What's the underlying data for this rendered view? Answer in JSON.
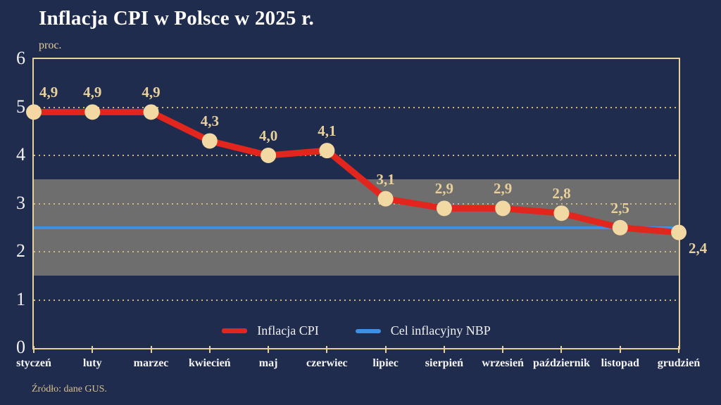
{
  "page": {
    "title": "Inflacja CPI w Polsce w 2025 r.",
    "unit_label": "proc.",
    "source": "Źródło: dane GUS."
  },
  "colors": {
    "background": "#1f2c4e",
    "plot_border": "#e8d09c",
    "gridline": "#cdb681",
    "band": "#6e6e6e",
    "cpi_line": "#e2261d",
    "marker_fill": "#f2d9a4",
    "target_line": "#3f8fe2",
    "data_label": "#e9d09a",
    "axis_text": "#f5f5f5"
  },
  "chart_data": {
    "type": "line",
    "title": "Inflacja CPI w Polsce w 2025 r.",
    "ylabel": "proc.",
    "xlabel": "",
    "ylim": [
      0,
      6
    ],
    "yticks": [
      0,
      1,
      2,
      3,
      4,
      5,
      6
    ],
    "grid": "dotted-horizontal",
    "legend_position": "bottom-inside",
    "categories": [
      "styczeń",
      "luty",
      "marzec",
      "kwiecień",
      "maj",
      "czerwiec",
      "lipiec",
      "sierpień",
      "wrzesień",
      "październik",
      "listopad",
      "grudzień"
    ],
    "series": [
      {
        "name": "Inflacja CPI",
        "type": "line-with-markers",
        "values": [
          4.9,
          4.9,
          4.9,
          4.3,
          4.0,
          4.1,
          3.1,
          2.9,
          2.9,
          2.8,
          2.5,
          2.4
        ],
        "value_labels": [
          "4,9",
          "4,9",
          "4,9",
          "4,3",
          "4,0",
          "4,1",
          "3,1",
          "2,9",
          "2,9",
          "2,8",
          "2,5",
          "2,4"
        ],
        "color": "#e2261d"
      },
      {
        "name": "Cel inflacyjny NBP",
        "type": "hline",
        "value": 2.5,
        "color": "#3f8fe2"
      }
    ],
    "band": {
      "from": 1.5,
      "to": 3.5,
      "color": "#6e6e6e",
      "label": ""
    }
  }
}
